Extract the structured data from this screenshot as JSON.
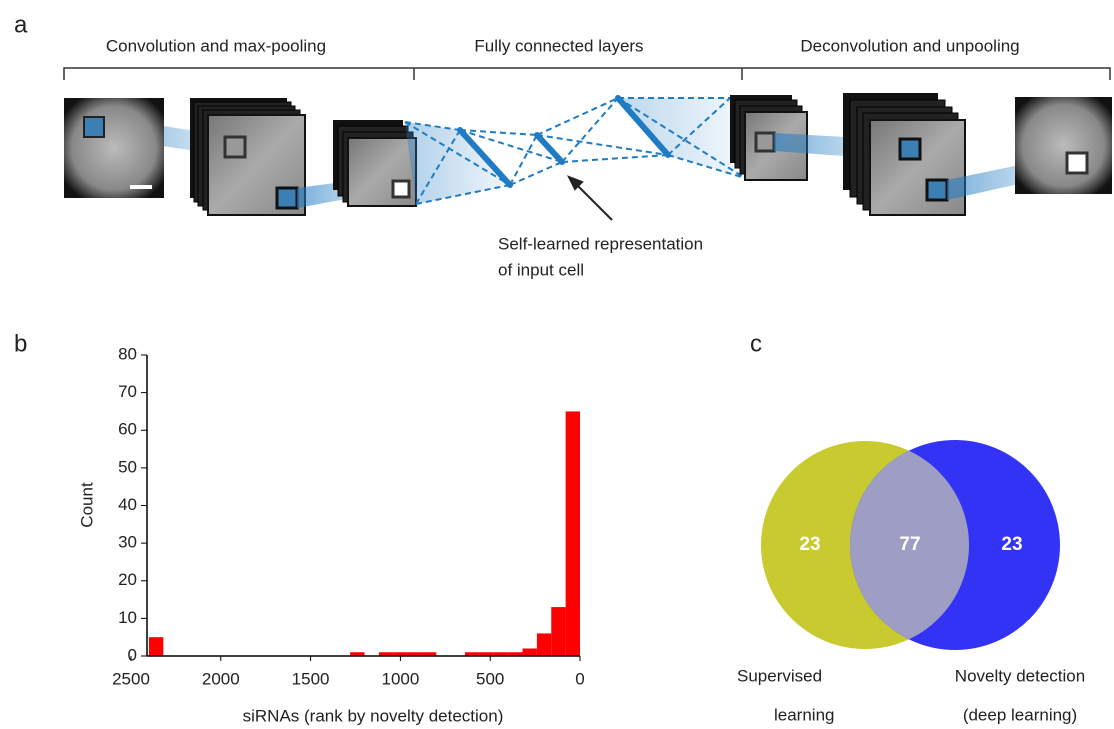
{
  "panel_labels": [
    "a",
    "b",
    "c"
  ],
  "diagram": {
    "sections": [
      "Convolution and max-pooling",
      "Fully connected layers",
      "Deconvolution and unpooling"
    ],
    "annotation_lines": [
      "Self-learned representation",
      "of input cell"
    ]
  },
  "chart_data": [
    {
      "type": "histogram",
      "ylabel": "Count",
      "xlabel": "siRNAs (rank by novelty detection)",
      "color": "#ff0000",
      "bins": [
        0,
        80,
        160,
        240,
        320,
        400,
        480,
        560,
        640,
        720,
        800,
        880,
        960,
        1040,
        1120,
        1200,
        1280,
        1360,
        1440,
        1520,
        1600,
        1680,
        1760,
        1840,
        1920,
        2000,
        2080,
        2160,
        2240,
        2320,
        2400
      ],
      "values": [
        65,
        13,
        6,
        2,
        1,
        1,
        1,
        1,
        0,
        0,
        1,
        1,
        1,
        1,
        0,
        1,
        0,
        0,
        0,
        0,
        0,
        0,
        0,
        0,
        0,
        0,
        0,
        0,
        0,
        5
      ],
      "xlim": [
        2500,
        0
      ],
      "xticks": [
        2500,
        2000,
        1500,
        1000,
        500,
        0
      ],
      "ylim": [
        0,
        80
      ],
      "yticks": [
        0,
        10,
        20,
        30,
        40,
        50,
        60,
        70,
        80
      ]
    },
    {
      "type": "venn",
      "sets": [
        {
          "name_lines": [
            "Supervised",
            "learning"
          ],
          "color": "#c9c930"
        },
        {
          "name_lines": [
            "Novelty detection",
            "(deep learning)"
          ],
          "color": "#3333f6"
        }
      ],
      "overlap_color": "#9e9ec4",
      "values": [
        23,
        77,
        23
      ]
    }
  ]
}
